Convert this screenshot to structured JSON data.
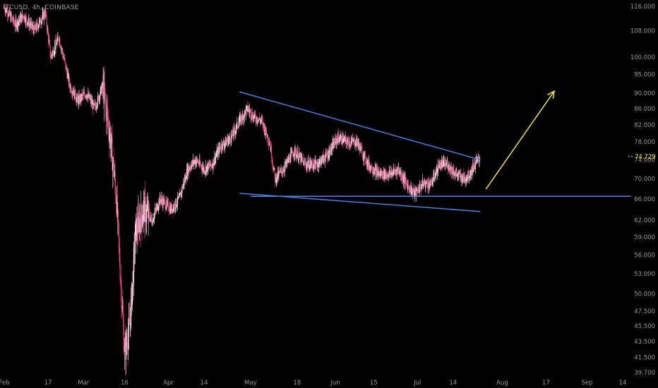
{
  "header": {
    "symbol_title": "LTCUSD, 4h, COINBASE"
  },
  "chart_data": {
    "type": "candlestick",
    "y_scale": "log",
    "ylim": [
      39.2,
      116
    ],
    "y_ticks": [
      116,
      108,
      100,
      95,
      90,
      86,
      82,
      78,
      74,
      70,
      66,
      62,
      59,
      56,
      53,
      50,
      47.5,
      45.5,
      43.5,
      41.5,
      39.7
    ],
    "y_tick_labels": [
      "116.000",
      "108.000",
      "100.000",
      "95.000",
      "90.000",
      "86.000",
      "82.000",
      "78.000",
      "74.000",
      "70.000",
      "66.000",
      "62.000",
      "59.000",
      "56.000",
      "53.000",
      "50.000",
      "47.500",
      "45.500",
      "43.500",
      "41.500",
      "39.700"
    ],
    "x_ticks": [
      {
        "label": "Feb",
        "date": "2020-02-01"
      },
      {
        "label": "17",
        "date": "2020-02-17"
      },
      {
        "label": "Mar",
        "date": "2020-03-01"
      },
      {
        "label": "16",
        "date": "2020-03-16"
      },
      {
        "label": "Apr",
        "date": "2020-04-01"
      },
      {
        "label": "14",
        "date": "2020-04-14"
      },
      {
        "label": "May",
        "date": "2020-05-01"
      },
      {
        "label": "18",
        "date": "2020-05-18"
      },
      {
        "label": "Jun",
        "date": "2020-06-01"
      },
      {
        "label": "15",
        "date": "2020-06-15"
      },
      {
        "label": "Jul",
        "date": "2020-07-01"
      },
      {
        "label": "14",
        "date": "2020-07-14"
      },
      {
        "label": "Aug",
        "date": "2020-08-01"
      },
      {
        "label": "17",
        "date": "2020-08-17"
      },
      {
        "label": "Sep",
        "date": "2020-09-01"
      },
      {
        "label": "14",
        "date": "2020-09-14"
      }
    ],
    "last_price": 74.729,
    "last_price_label": "74.729",
    "price_path": [
      [
        "2020-02-01",
        116
      ],
      [
        "2020-02-05",
        110
      ],
      [
        "2020-02-08",
        113
      ],
      [
        "2020-02-12",
        108
      ],
      [
        "2020-02-16",
        114
      ],
      [
        "2020-02-18",
        100
      ],
      [
        "2020-02-21",
        106
      ],
      [
        "2020-02-25",
        92
      ],
      [
        "2020-02-28",
        88
      ],
      [
        "2020-03-02",
        90
      ],
      [
        "2020-03-05",
        86
      ],
      [
        "2020-03-08",
        92
      ],
      [
        "2020-03-11",
        78
      ],
      [
        "2020-03-13",
        66
      ],
      [
        "2020-03-16",
        42
      ],
      [
        "2020-03-18",
        46
      ],
      [
        "2020-03-20",
        60
      ],
      [
        "2020-03-23",
        64
      ],
      [
        "2020-03-26",
        62
      ],
      [
        "2020-03-29",
        66
      ],
      [
        "2020-04-02",
        64
      ],
      [
        "2020-04-05",
        66
      ],
      [
        "2020-04-08",
        72
      ],
      [
        "2020-04-11",
        74
      ],
      [
        "2020-04-14",
        72
      ],
      [
        "2020-04-17",
        73
      ],
      [
        "2020-04-20",
        77
      ],
      [
        "2020-04-24",
        79
      ],
      [
        "2020-04-27",
        83
      ],
      [
        "2020-04-30",
        86
      ],
      [
        "2020-05-02",
        84
      ],
      [
        "2020-05-05",
        83
      ],
      [
        "2020-05-08",
        78
      ],
      [
        "2020-05-10",
        70
      ],
      [
        "2020-05-13",
        72
      ],
      [
        "2020-05-17",
        76
      ],
      [
        "2020-05-21",
        73
      ],
      [
        "2020-05-25",
        73
      ],
      [
        "2020-05-29",
        75
      ],
      [
        "2020-06-02",
        79
      ],
      [
        "2020-06-05",
        78
      ],
      [
        "2020-06-09",
        78
      ],
      [
        "2020-06-13",
        73
      ],
      [
        "2020-06-17",
        71
      ],
      [
        "2020-06-21",
        71
      ],
      [
        "2020-06-24",
        72
      ],
      [
        "2020-06-27",
        69
      ],
      [
        "2020-06-30",
        67
      ],
      [
        "2020-07-03",
        69
      ],
      [
        "2020-07-06",
        69
      ],
      [
        "2020-07-09",
        73
      ],
      [
        "2020-07-12",
        73
      ],
      [
        "2020-07-15",
        71
      ],
      [
        "2020-07-18",
        70
      ],
      [
        "2020-07-20",
        71
      ],
      [
        "2020-07-22",
        73
      ],
      [
        "2020-07-24",
        74.7
      ]
    ],
    "lines": [
      {
        "name": "upper-trendline",
        "color": "#4f7fe0",
        "from": [
          "2020-04-27",
          90.3
        ],
        "to": [
          "2020-07-24",
          74.0
        ]
      },
      {
        "name": "lower-trendline",
        "color": "#4f7fe0",
        "from": [
          "2020-04-27",
          67.1
        ],
        "to": [
          "2020-07-24",
          63.6
        ]
      },
      {
        "name": "support-line",
        "color": "#4f7fe0",
        "from": [
          "2020-05-01",
          66.5
        ],
        "to": [
          "2020-09-17",
          66.5
        ]
      },
      {
        "name": "projection-arrow",
        "color": "#f2e05a",
        "from": [
          "2020-07-26",
          67.9
        ],
        "to": [
          "2020-08-20",
          90.5
        ],
        "arrow": true
      }
    ],
    "colors": {
      "up": "#f7f2f5",
      "down": "#e0447d",
      "axis_text": "#9a9a9a",
      "price_tag": "#ffee58",
      "trendline": "#4f7fe0",
      "projection": "#f2e05a"
    }
  }
}
